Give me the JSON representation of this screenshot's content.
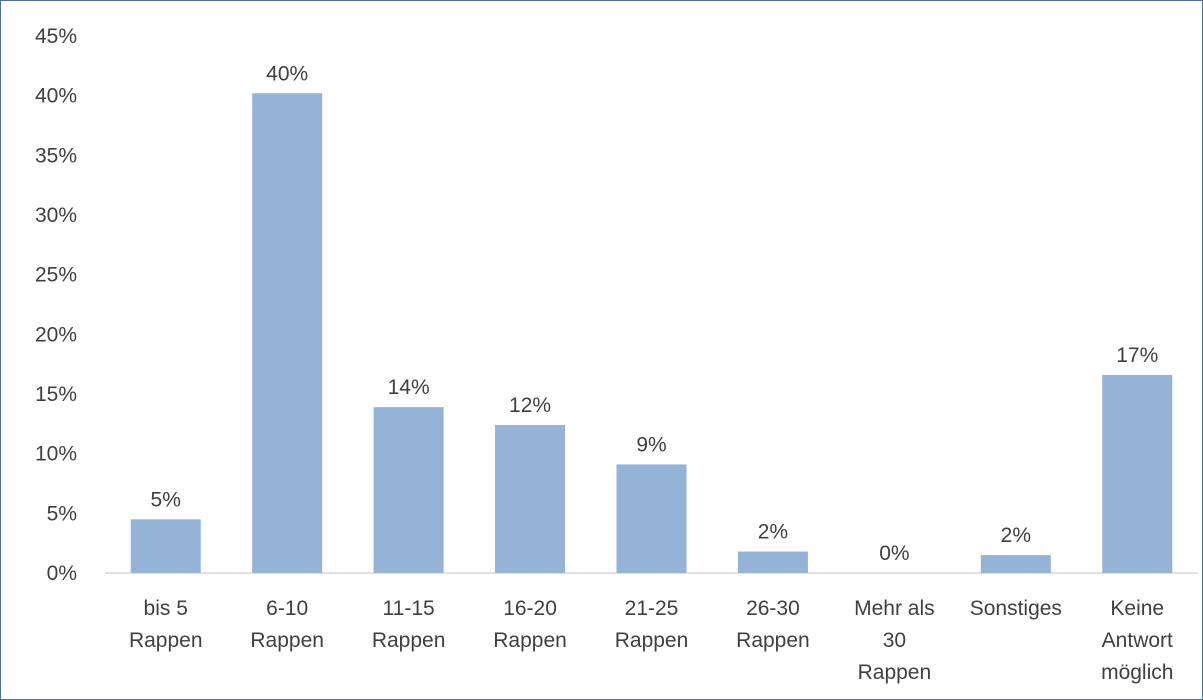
{
  "chart_data": {
    "type": "bar",
    "categories": [
      [
        "bis 5",
        "Rappen"
      ],
      [
        "6-10",
        "Rappen"
      ],
      [
        "11-15",
        "Rappen"
      ],
      [
        "16-20",
        "Rappen"
      ],
      [
        "21-25",
        "Rappen"
      ],
      [
        "26-30",
        "Rappen"
      ],
      [
        "Mehr als",
        "30",
        "Rappen"
      ],
      [
        "Sonstiges"
      ],
      [
        "Keine",
        "Antwort",
        "möglich"
      ]
    ],
    "values": [
      4.5,
      40.2,
      13.9,
      12.4,
      9.1,
      1.8,
      0,
      1.5,
      16.6
    ],
    "data_labels": [
      "5%",
      "40%",
      "14%",
      "12%",
      "9%",
      "2%",
      "0%",
      "2%",
      "17%"
    ],
    "yticks": [
      "0%",
      "5%",
      "10%",
      "15%",
      "20%",
      "25%",
      "30%",
      "35%",
      "40%",
      "45%"
    ],
    "ylim": [
      0,
      45
    ],
    "ytick_step": 5,
    "bar_color": "#95b3d7",
    "axis_color": "#d9d9d9",
    "grid": false,
    "legend": "none"
  }
}
